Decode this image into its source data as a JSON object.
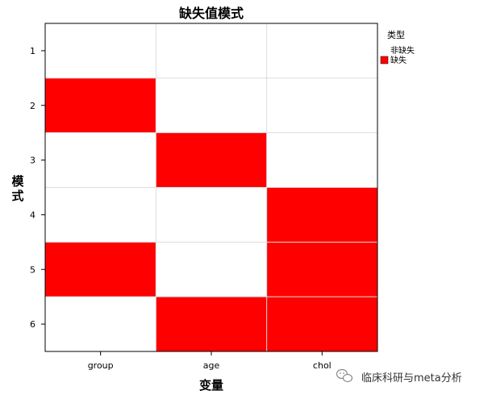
{
  "chart_data": {
    "type": "heatmap",
    "title": "缺失值模式",
    "xlabel": "变量",
    "ylabel": "模式",
    "x_categories": [
      "group",
      "age",
      "chol"
    ],
    "y_categories": [
      "1",
      "2",
      "3",
      "4",
      "5",
      "6"
    ],
    "values": [
      [
        0,
        0,
        0
      ],
      [
        1,
        0,
        0
      ],
      [
        0,
        1,
        0
      ],
      [
        0,
        0,
        1
      ],
      [
        1,
        0,
        1
      ],
      [
        0,
        1,
        1
      ]
    ],
    "legend": {
      "title": "类型",
      "placement": "top-right",
      "entries": [
        {
          "value": 0,
          "label": "非缺失",
          "color": "#ffffff"
        },
        {
          "value": 1,
          "label": "缺失",
          "color": "#ff0000"
        }
      ]
    },
    "grid": true
  },
  "watermark": {
    "text": "临床科研与meta分析",
    "icon": "wechat-icon"
  },
  "colors": {
    "missing": "#ff0000",
    "present": "#ffffff",
    "grid": "#dddddd",
    "frame": "#000000"
  }
}
